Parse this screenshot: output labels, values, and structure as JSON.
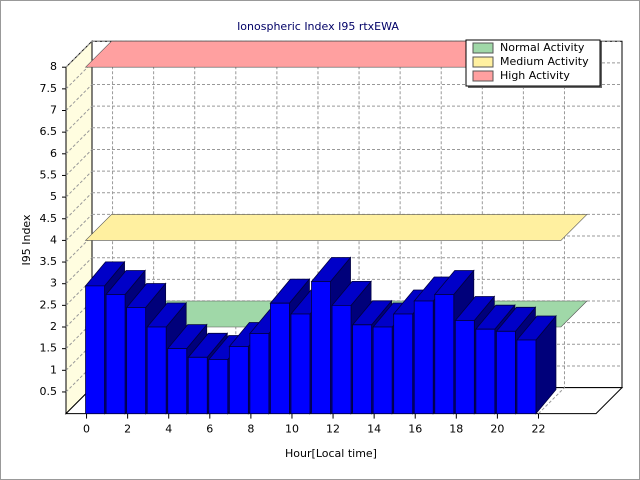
{
  "chart_data": {
    "type": "bar",
    "title": "Ionospheric Index I95 rtxEWA",
    "xlabel": "Hour[Local time]",
    "ylabel": "I95 Index",
    "x": [
      0,
      1,
      2,
      3,
      4,
      5,
      6,
      7,
      8,
      9,
      10,
      11,
      12,
      13,
      14,
      15,
      16,
      17,
      18,
      19,
      20,
      21
    ],
    "values": [
      2.95,
      2.75,
      2.45,
      2.0,
      1.5,
      1.3,
      1.25,
      1.55,
      1.85,
      2.55,
      2.3,
      3.05,
      2.5,
      2.05,
      2.0,
      2.3,
      2.6,
      2.75,
      2.15,
      1.95,
      1.9,
      1.7
    ],
    "color": "#0000ff",
    "xlim": [
      -1,
      24.8
    ],
    "xticks": [
      0,
      2,
      4,
      6,
      8,
      10,
      12,
      14,
      16,
      18,
      20,
      22
    ],
    "ylim": [
      0,
      8
    ],
    "yticks": [
      0.5,
      1,
      1.5,
      2,
      2.5,
      3,
      3.5,
      4,
      4.5,
      5,
      5.5,
      6,
      6.5,
      7,
      7.5,
      8
    ],
    "grid": true,
    "legend": "top-right",
    "bands": [
      {
        "name": "Normal Activity",
        "value": 2,
        "color": "#a0d8a8"
      },
      {
        "name": "Medium Activity",
        "value": 4,
        "color": "#fff0a0"
      },
      {
        "name": "High Activity",
        "value": 8,
        "color": "#ffa0a0"
      }
    ]
  }
}
